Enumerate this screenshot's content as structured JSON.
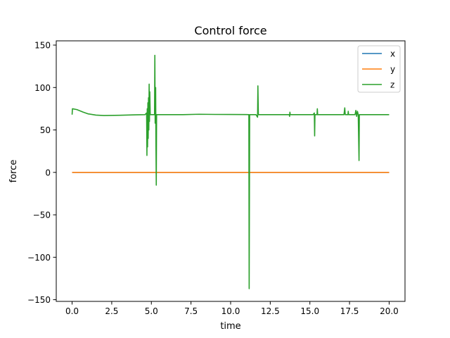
{
  "chart_data": {
    "type": "line",
    "title": "Control force",
    "xlabel": "time",
    "ylabel": "force",
    "xlim": [
      -1.0,
      21.0
    ],
    "ylim": [
      -152,
      155
    ],
    "x_ticks": [
      {
        "value": 0,
        "label": "0.0"
      },
      {
        "value": 2.5,
        "label": "2.5"
      },
      {
        "value": 5,
        "label": "5.0"
      },
      {
        "value": 7.5,
        "label": "7.5"
      },
      {
        "value": 10,
        "label": "10.0"
      },
      {
        "value": 12.5,
        "label": "12.5"
      },
      {
        "value": 15,
        "label": "15.0"
      },
      {
        "value": 17.5,
        "label": "17.5"
      },
      {
        "value": 20,
        "label": "20.0"
      }
    ],
    "y_ticks": [
      {
        "value": 150,
        "label": "150"
      },
      {
        "value": 100,
        "label": "100"
      },
      {
        "value": 50,
        "label": "50"
      },
      {
        "value": 0,
        "label": "0"
      },
      {
        "value": -50,
        "label": "−50"
      },
      {
        "value": -100,
        "label": "−100"
      },
      {
        "value": -150,
        "label": "−150"
      }
    ],
    "grid": false,
    "legend_position": "top-right",
    "series": [
      {
        "name": "x",
        "color": "#1f77b4",
        "points": [
          [
            0,
            0
          ],
          [
            20,
            0
          ]
        ]
      },
      {
        "name": "y",
        "color": "#ff7f0e",
        "points": [
          [
            0,
            0
          ],
          [
            20,
            0
          ]
        ]
      },
      {
        "name": "z",
        "color": "#2ca02c",
        "points": [
          [
            0.0,
            68
          ],
          [
            0.02,
            75
          ],
          [
            0.3,
            74
          ],
          [
            0.7,
            71
          ],
          [
            1.0,
            69
          ],
          [
            1.5,
            67.5
          ],
          [
            2.0,
            67
          ],
          [
            3.0,
            67.3
          ],
          [
            4.0,
            67.8
          ],
          [
            4.6,
            68
          ],
          [
            4.7,
            70
          ],
          [
            4.72,
            20
          ],
          [
            4.74,
            75
          ],
          [
            4.76,
            30
          ],
          [
            4.78,
            82
          ],
          [
            4.8,
            40
          ],
          [
            4.82,
            88
          ],
          [
            4.84,
            50
          ],
          [
            4.86,
            104
          ],
          [
            4.88,
            60
          ],
          [
            4.9,
            95
          ],
          [
            4.93,
            68
          ],
          [
            5.1,
            68
          ],
          [
            5.2,
            68
          ],
          [
            5.22,
            138
          ],
          [
            5.24,
            58
          ],
          [
            5.27,
            100
          ],
          [
            5.29,
            30
          ],
          [
            5.31,
            -15
          ],
          [
            5.33,
            68
          ],
          [
            6.0,
            68
          ],
          [
            7.0,
            68
          ],
          [
            8.0,
            68.5
          ],
          [
            9.0,
            68.3
          ],
          [
            10.0,
            68.2
          ],
          [
            11.0,
            68.1
          ],
          [
            11.15,
            68
          ],
          [
            11.17,
            -137
          ],
          [
            11.2,
            68
          ],
          [
            11.6,
            68
          ],
          [
            11.7,
            65
          ],
          [
            11.72,
            102
          ],
          [
            11.75,
            68
          ],
          [
            12.5,
            68
          ],
          [
            13.7,
            68
          ],
          [
            13.72,
            66
          ],
          [
            13.74,
            71
          ],
          [
            13.76,
            68
          ],
          [
            15.2,
            68
          ],
          [
            15.28,
            70
          ],
          [
            15.3,
            43
          ],
          [
            15.32,
            68
          ],
          [
            15.45,
            68
          ],
          [
            15.47,
            75
          ],
          [
            15.49,
            68
          ],
          [
            17.15,
            68
          ],
          [
            17.2,
            76
          ],
          [
            17.23,
            68
          ],
          [
            17.4,
            68
          ],
          [
            17.42,
            72
          ],
          [
            17.44,
            68
          ],
          [
            17.85,
            68
          ],
          [
            17.9,
            73
          ],
          [
            17.95,
            66
          ],
          [
            18.0,
            72
          ],
          [
            18.05,
            68
          ],
          [
            18.1,
            14
          ],
          [
            18.12,
            68
          ],
          [
            19.0,
            68
          ],
          [
            20.0,
            68
          ]
        ]
      }
    ]
  }
}
